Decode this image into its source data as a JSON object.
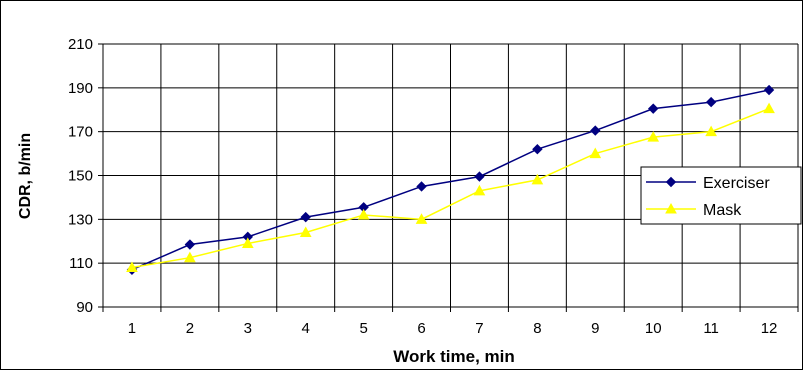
{
  "chart_data": {
    "type": "line",
    "title": "",
    "xlabel": "Work time, min",
    "ylabel": "CDR, b/min",
    "categories": [
      "1",
      "2",
      "3",
      "4",
      "5",
      "6",
      "7",
      "8",
      "9",
      "10",
      "11",
      "12"
    ],
    "ylim": [
      90,
      210
    ],
    "yticks": [
      90,
      110,
      130,
      150,
      170,
      190,
      210
    ],
    "grid": true,
    "legend_position": "right",
    "series": [
      {
        "name": "Exerciser",
        "color": "#000080",
        "marker": "diamond",
        "values": [
          107,
          118.5,
          122,
          131,
          135.5,
          145,
          149.5,
          162,
          170.5,
          180.5,
          183.5,
          189
        ]
      },
      {
        "name": "Mask",
        "color": "#ffff00",
        "marker": "triangle",
        "values": [
          108,
          112.5,
          119,
          124,
          132,
          130,
          143,
          148,
          160,
          167.5,
          170,
          180.5
        ]
      }
    ]
  }
}
